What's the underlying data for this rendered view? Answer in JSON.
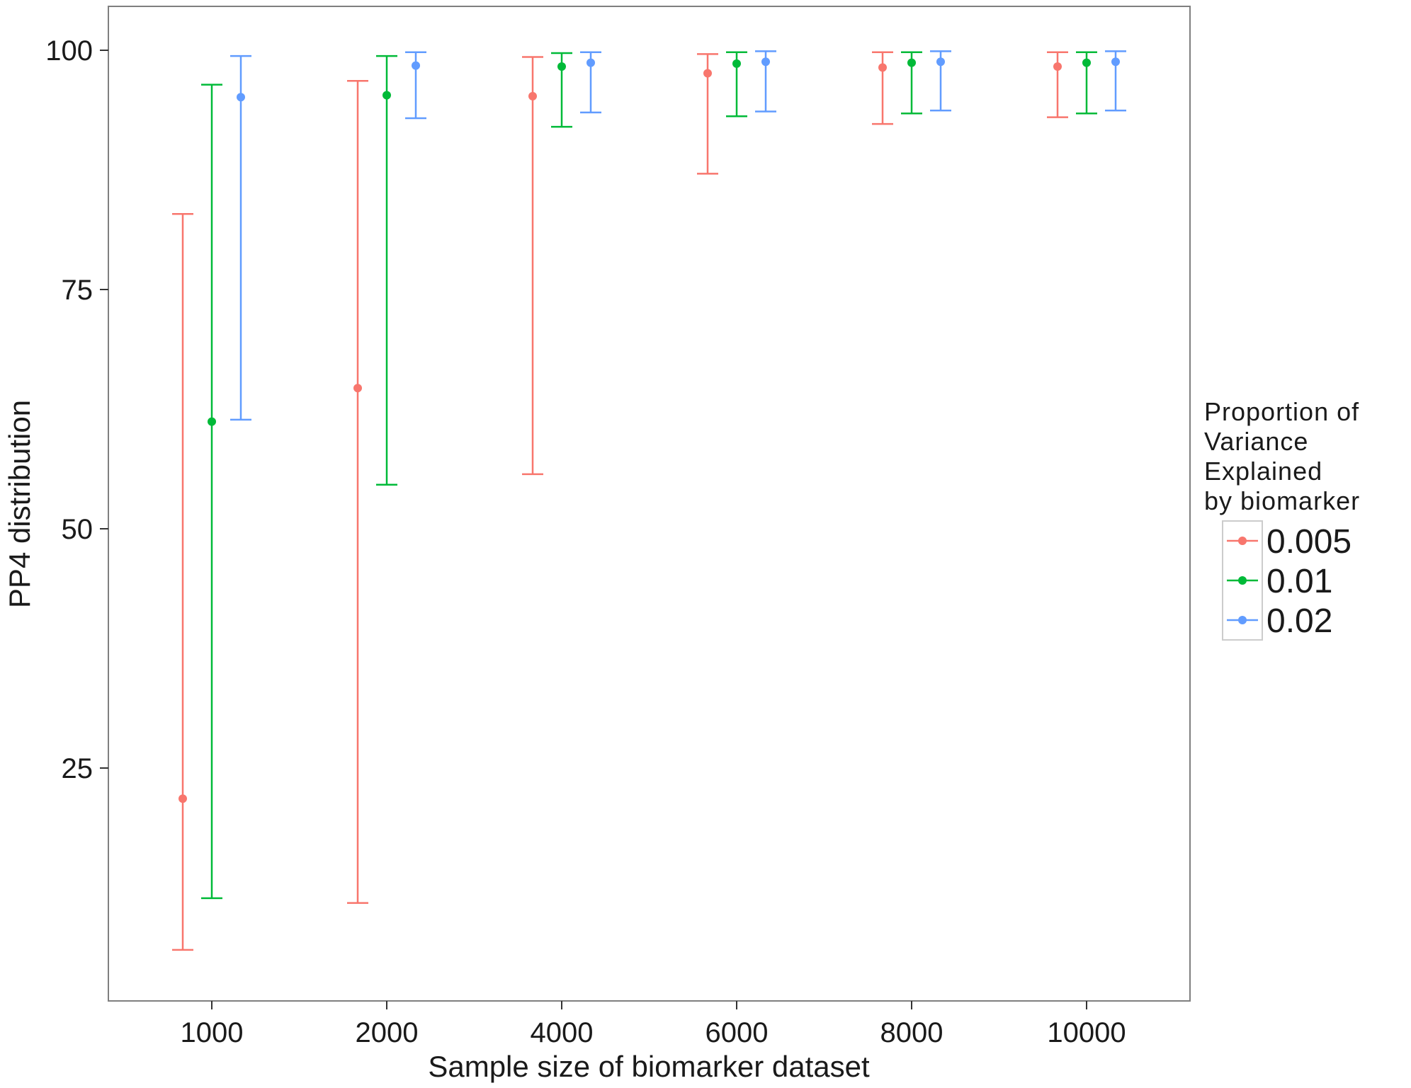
{
  "chart_data": {
    "type": "errorbar",
    "title": "",
    "xlabel": "Sample size of biomarker dataset",
    "ylabel": "PP4 distribution",
    "categories": [
      "1000",
      "2000",
      "4000",
      "6000",
      "8000",
      "10000"
    ],
    "yticks": [
      25,
      50,
      75,
      100
    ],
    "ylim": [
      1.5,
      105
    ],
    "grid": false,
    "legend": {
      "title_lines": [
        "Proportion of",
        "Variance",
        "Explained",
        "by biomarker"
      ],
      "placement": "right"
    },
    "series": [
      {
        "name": "0.005",
        "color": "#F8766D",
        "points": [
          {
            "x": "1000",
            "y": 21.8,
            "lower": 6.0,
            "upper": 82.9
          },
          {
            "x": "2000",
            "y": 64.7,
            "lower": 10.9,
            "upper": 96.8
          },
          {
            "x": "4000",
            "y": 95.2,
            "lower": 55.7,
            "upper": 99.3
          },
          {
            "x": "6000",
            "y": 97.6,
            "lower": 87.1,
            "upper": 99.6
          },
          {
            "x": "8000",
            "y": 98.2,
            "lower": 92.3,
            "upper": 99.8
          },
          {
            "x": "10000",
            "y": 98.3,
            "lower": 93.0,
            "upper": 99.8
          }
        ]
      },
      {
        "name": "0.01",
        "color": "#00BA38",
        "points": [
          {
            "x": "1000",
            "y": 61.2,
            "lower": 11.4,
            "upper": 96.4
          },
          {
            "x": "2000",
            "y": 95.3,
            "lower": 54.6,
            "upper": 99.4
          },
          {
            "x": "4000",
            "y": 98.3,
            "lower": 92.0,
            "upper": 99.7
          },
          {
            "x": "6000",
            "y": 98.6,
            "lower": 93.1,
            "upper": 99.8
          },
          {
            "x": "8000",
            "y": 98.7,
            "lower": 93.4,
            "upper": 99.8
          },
          {
            "x": "10000",
            "y": 98.7,
            "lower": 93.4,
            "upper": 99.8
          }
        ]
      },
      {
        "name": "0.02",
        "color": "#619CFF",
        "points": [
          {
            "x": "1000",
            "y": 95.1,
            "lower": 61.4,
            "upper": 99.4
          },
          {
            "x": "2000",
            "y": 98.4,
            "lower": 92.9,
            "upper": 99.8
          },
          {
            "x": "4000",
            "y": 98.7,
            "lower": 93.5,
            "upper": 99.8
          },
          {
            "x": "6000",
            "y": 98.8,
            "lower": 93.6,
            "upper": 99.9
          },
          {
            "x": "8000",
            "y": 98.8,
            "lower": 93.7,
            "upper": 99.9
          },
          {
            "x": "10000",
            "y": 98.8,
            "lower": 93.7,
            "upper": 99.9
          }
        ]
      }
    ]
  }
}
